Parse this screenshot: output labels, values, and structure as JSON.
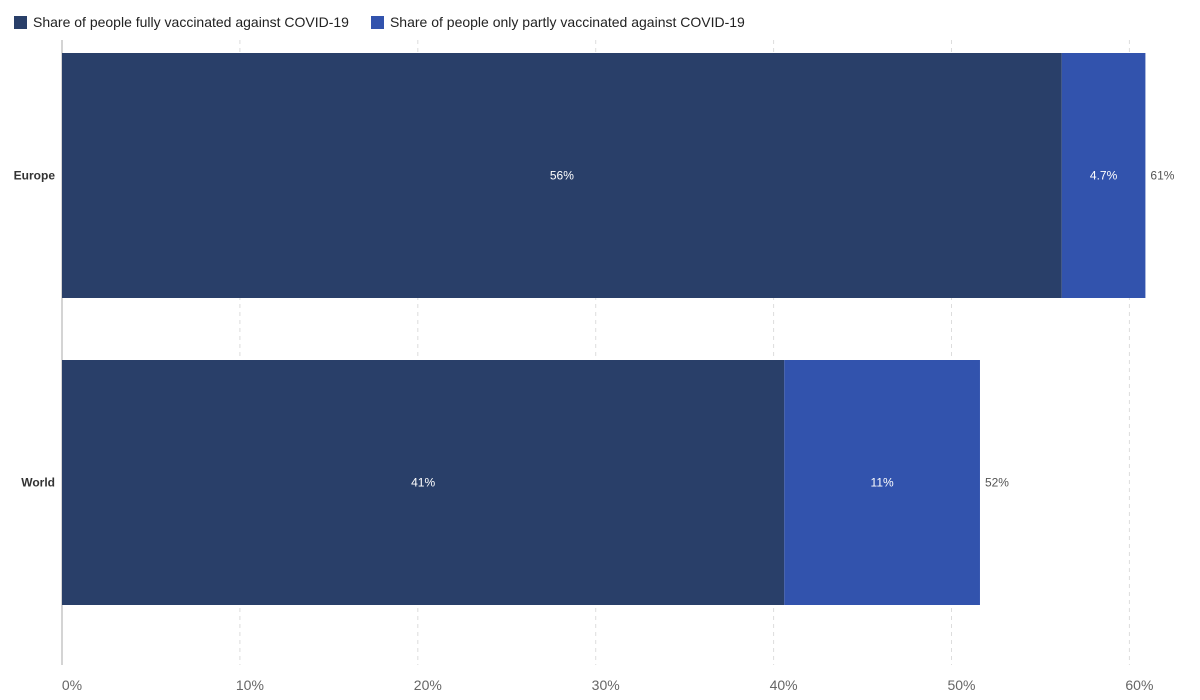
{
  "colors": {
    "fully": "#293f69",
    "partly": "#3253ad",
    "grid": "#dddddd",
    "axis": "#aaaaaa",
    "label": "#333333",
    "total_label": "#555555"
  },
  "legend": {
    "fully": "Share of people fully vaccinated against COVID-19",
    "partly": "Share of people only partly vaccinated against COVID-19"
  },
  "chart_data": {
    "type": "bar",
    "orientation": "horizontal",
    "stacked": true,
    "categories": [
      "Europe",
      "World"
    ],
    "series": [
      {
        "name": "Share of people fully vaccinated against COVID-19",
        "values": [
          56.2,
          40.6
        ],
        "labels": [
          "56%",
          "41%"
        ]
      },
      {
        "name": "Share of people only partly vaccinated against COVID-19",
        "values": [
          4.7,
          11.0
        ],
        "labels": [
          "4.7%",
          "11%"
        ]
      }
    ],
    "totals": [
      "61%",
      "52%"
    ],
    "xlim": [
      0,
      61
    ],
    "xticks": [
      0,
      10,
      20,
      30,
      40,
      50,
      60
    ],
    "xtick_labels": [
      "0%",
      "10%",
      "20%",
      "30%",
      "40%",
      "50%",
      "60%"
    ],
    "grid": "vertical dashed",
    "legend_position": "top-left"
  }
}
